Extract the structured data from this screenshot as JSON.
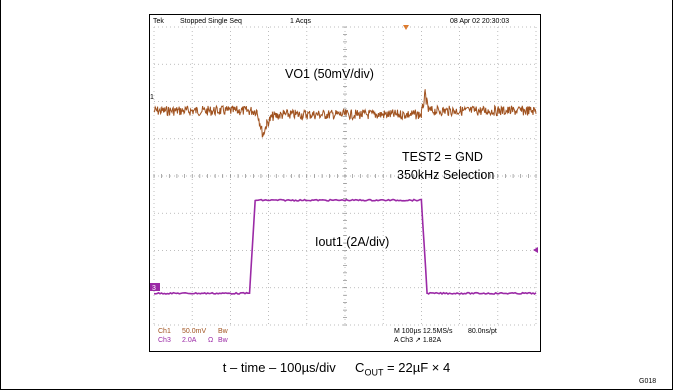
{
  "scope_header": {
    "brand": "Tek",
    "mode": "Stopped Single Seq",
    "acqs": "1 Acqs",
    "timestamp": "08 Apr 02 20:30:03"
  },
  "annotations": {
    "vo1_label": "VO1 (50mV/div)",
    "iout_label": "Iout1 (2A/div)",
    "test_line1": "TEST2 = GND",
    "test_line2": "350kHz Selection"
  },
  "channel_markers": {
    "ch1": "1",
    "ch3": "3"
  },
  "readout": {
    "ch1_name": "Ch1",
    "ch1_scale": "50.0mV",
    "ch1_bw": "Bw",
    "ch3_name": "Ch3",
    "ch3_scale": "2.0A",
    "ch3_unit": "Ω",
    "ch3_bw": "Bw",
    "timebase": "M 100µs 12.5MS/s",
    "sample_interval": "80.0ns/pt",
    "trigger": "A  Ch3  ↗  1.82A"
  },
  "caption": {
    "part1": "t – time – 100µs/div",
    "cout_prefix": "C",
    "cout_sub": "OUT",
    "cout_value": " = 22µF × 4"
  },
  "figure_id": "G018",
  "chart_data": {
    "type": "line",
    "x_divisions": 10,
    "y_divisions": 8,
    "x_unit": "div",
    "series": [
      {
        "name": "VO1 (50mV/div)",
        "color": "#a0521f",
        "points": [
          [
            0,
            5.75
          ],
          [
            2.7,
            5.75
          ],
          [
            2.85,
            5.1
          ],
          [
            2.95,
            5.4
          ],
          [
            3.1,
            5.6
          ],
          [
            3.4,
            5.65
          ],
          [
            7.0,
            5.65
          ],
          [
            7.1,
            6.2
          ],
          [
            7.18,
            5.75
          ],
          [
            10,
            5.75
          ]
        ]
      },
      {
        "name": "Iout1 (2A/div)",
        "color": "#9b2aa6",
        "points": [
          [
            0,
            0.85
          ],
          [
            2.5,
            0.85
          ],
          [
            2.65,
            3.35
          ],
          [
            7.0,
            3.35
          ],
          [
            7.15,
            0.85
          ],
          [
            10,
            0.85
          ]
        ]
      }
    ]
  }
}
